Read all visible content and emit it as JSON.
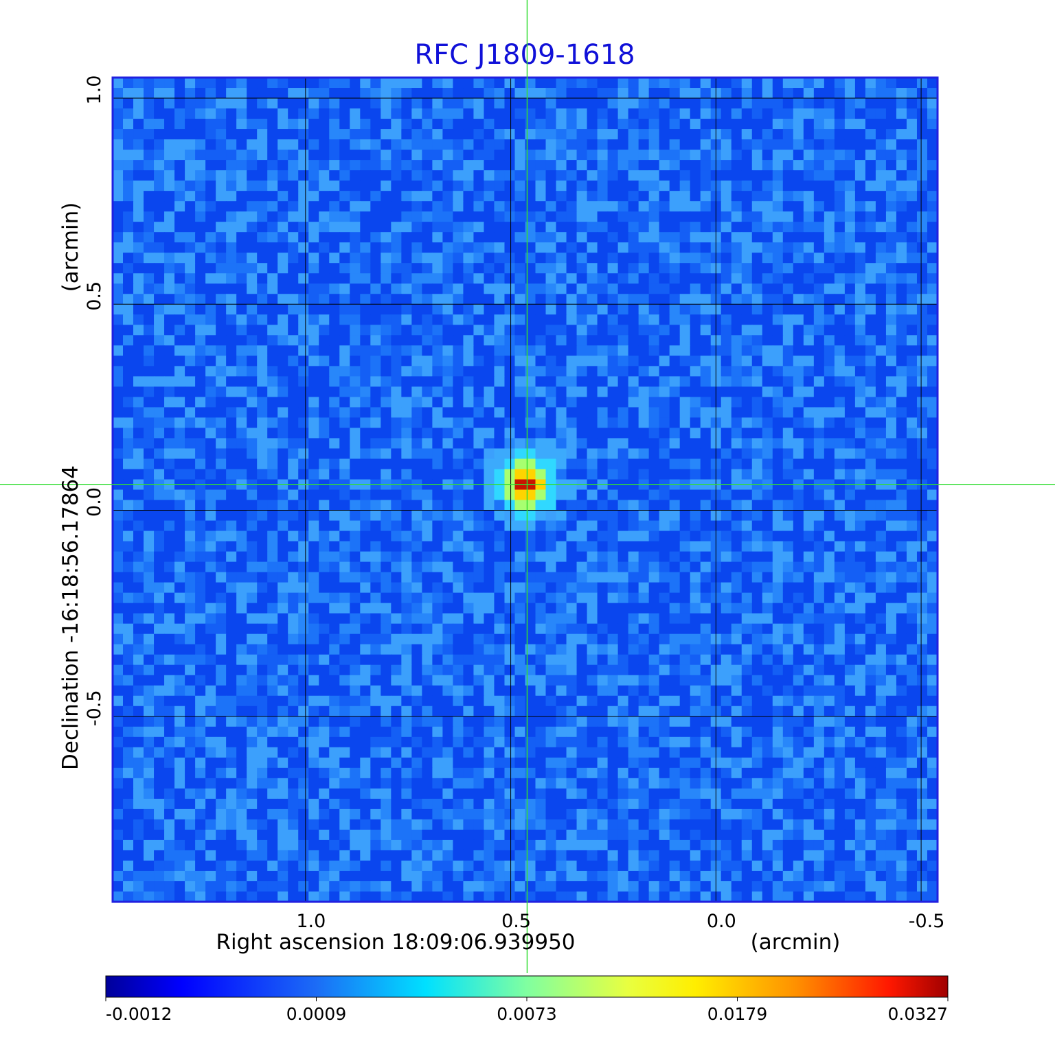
{
  "chart_data": {
    "type": "heatmap",
    "title": "RFC J1809-1618",
    "xlabel": "Right ascension  18:09:06.939950",
    "xunit": "(arcmin)",
    "ylabel": "Declination  -16:18:56.17864",
    "yunit": "(arcmin)",
    "xlim": [
      1.47,
      -0.54
    ],
    "ylim": [
      -0.95,
      1.05
    ],
    "x_ticks": [
      1.0,
      0.5,
      0.0,
      -0.5
    ],
    "x_tick_labels": [
      "1.0",
      "0.5",
      "0.0",
      "-0.5"
    ],
    "y_ticks": [
      -0.5,
      0.0,
      0.5,
      1.0
    ],
    "y_tick_labels": [
      "-0.5",
      "0.0",
      "0.5",
      "1.0"
    ],
    "grid": true,
    "crosshair": {
      "x": 0.46,
      "y": 0.063
    },
    "source_peak": {
      "x": 0.46,
      "y": 0.063,
      "value": 0.0327
    },
    "colorbar": {
      "colormap": "jet",
      "tick_labels": [
        "-0.0012",
        "0.0009",
        "0.0073",
        "0.0179",
        "0.0327"
      ]
    },
    "colors": {
      "frame": "#2020e0",
      "title": "#1010d8",
      "crosshair": "#33dd33",
      "grid": "#000000",
      "background_field": "#1a6ef0"
    }
  }
}
